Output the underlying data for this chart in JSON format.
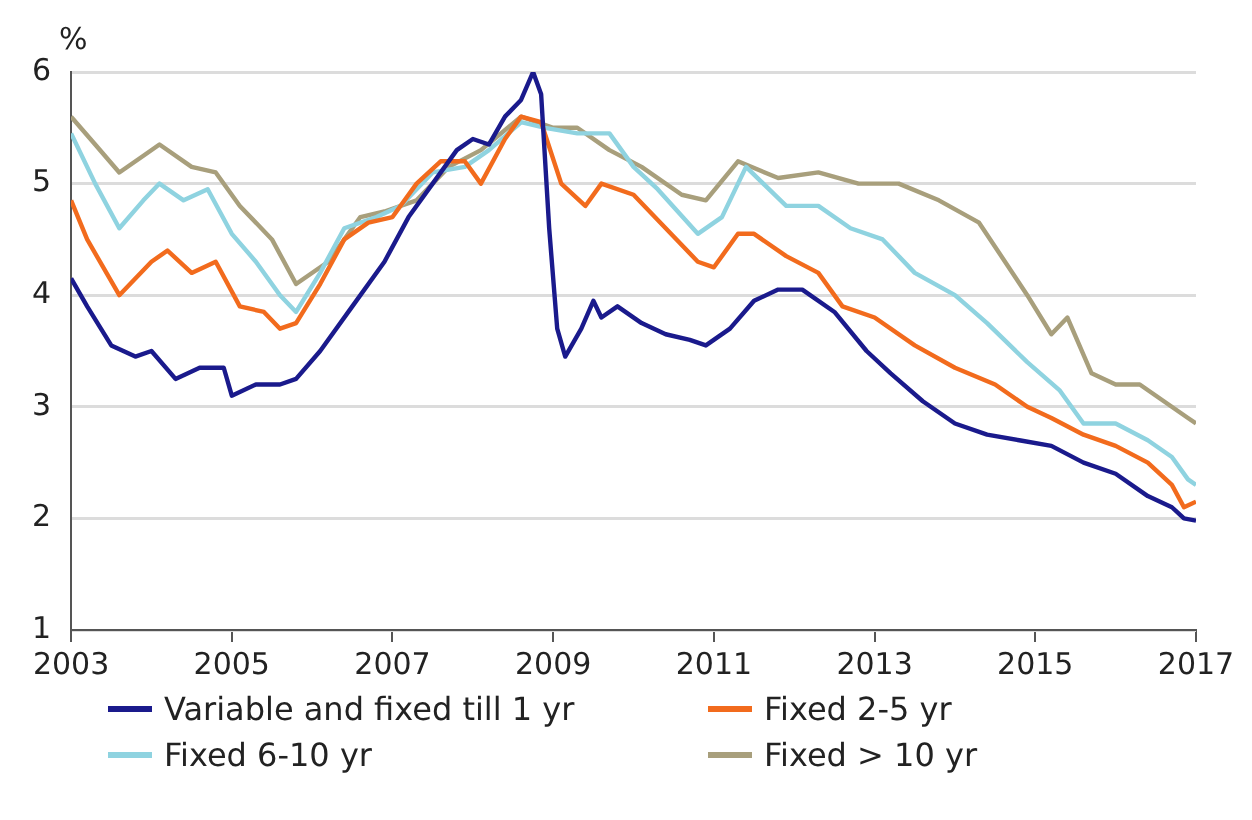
{
  "chart_data": {
    "type": "line",
    "ylabel": "%",
    "xlim": [
      2003,
      2017
    ],
    "xticks": [
      2003,
      2005,
      2007,
      2009,
      2011,
      2013,
      2015,
      2017
    ],
    "ylim": [
      1,
      6
    ],
    "yticks": [
      1,
      2,
      3,
      4,
      5,
      6
    ],
    "grid": "y",
    "legend": "bottom",
    "marker": "none",
    "line_style": "solid",
    "series": [
      {
        "name": "Variable and fixed till 1 yr",
        "color": "#1a1a8c",
        "x": [
          2003.0,
          2003.2,
          2003.5,
          2003.8,
          2004.0,
          2004.3,
          2004.6,
          2004.9,
          2005.0,
          2005.3,
          2005.6,
          2005.8,
          2006.1,
          2006.5,
          2006.9,
          2007.2,
          2007.5,
          2007.8,
          2008.0,
          2008.2,
          2008.4,
          2008.6,
          2008.75,
          2008.85,
          2008.95,
          2009.05,
          2009.15,
          2009.35,
          2009.5,
          2009.6,
          2009.8,
          2010.1,
          2010.4,
          2010.7,
          2010.9,
          2011.2,
          2011.5,
          2011.8,
          2012.1,
          2012.5,
          2012.9,
          2013.2,
          2013.6,
          2014.0,
          2014.4,
          2014.8,
          2015.2,
          2015.6,
          2016.0,
          2016.4,
          2016.7,
          2016.85,
          2017.0
        ],
        "values": [
          4.15,
          3.9,
          3.55,
          3.45,
          3.5,
          3.25,
          3.35,
          3.35,
          3.1,
          3.2,
          3.2,
          3.25,
          3.5,
          3.9,
          4.3,
          4.7,
          5.0,
          5.3,
          5.4,
          5.35,
          5.6,
          5.75,
          6.0,
          5.8,
          4.6,
          3.7,
          3.45,
          3.7,
          3.95,
          3.8,
          3.9,
          3.75,
          3.65,
          3.6,
          3.55,
          3.7,
          3.95,
          4.05,
          4.05,
          3.85,
          3.5,
          3.3,
          3.05,
          2.85,
          2.75,
          2.7,
          2.65,
          2.5,
          2.4,
          2.2,
          2.1,
          2.0,
          1.98
        ]
      },
      {
        "name": "Fixed 2-5 yr",
        "color": "#f26b1d",
        "x": [
          2003.0,
          2003.2,
          2003.6,
          2004.0,
          2004.2,
          2004.5,
          2004.8,
          2005.1,
          2005.4,
          2005.6,
          2005.8,
          2006.1,
          2006.4,
          2006.7,
          2007.0,
          2007.3,
          2007.6,
          2007.9,
          2008.1,
          2008.4,
          2008.6,
          2008.85,
          2009.1,
          2009.4,
          2009.6,
          2010.0,
          2010.4,
          2010.8,
          2011.0,
          2011.3,
          2011.5,
          2011.9,
          2012.3,
          2012.6,
          2013.0,
          2013.5,
          2014.0,
          2014.5,
          2014.9,
          2015.2,
          2015.6,
          2016.0,
          2016.4,
          2016.7,
          2016.85,
          2017.0
        ],
        "values": [
          4.85,
          4.5,
          4.0,
          4.3,
          4.4,
          4.2,
          4.3,
          3.9,
          3.85,
          3.7,
          3.75,
          4.1,
          4.5,
          4.65,
          4.7,
          5.0,
          5.2,
          5.2,
          5.0,
          5.4,
          5.6,
          5.55,
          5.0,
          4.8,
          5.0,
          4.9,
          4.6,
          4.3,
          4.25,
          4.55,
          4.55,
          4.35,
          4.2,
          3.9,
          3.8,
          3.55,
          3.35,
          3.2,
          3.0,
          2.9,
          2.75,
          2.65,
          2.5,
          2.3,
          2.1,
          2.15
        ]
      },
      {
        "name": "Fixed 6-10 yr",
        "color": "#8fd3e0",
        "x": [
          2003.0,
          2003.3,
          2003.6,
          2003.9,
          2004.1,
          2004.4,
          2004.7,
          2005.0,
          2005.3,
          2005.6,
          2005.8,
          2006.1,
          2006.4,
          2006.8,
          2007.1,
          2007.5,
          2007.9,
          2008.2,
          2008.6,
          2008.9,
          2009.3,
          2009.7,
          2010.0,
          2010.3,
          2010.8,
          2011.1,
          2011.4,
          2011.9,
          2012.3,
          2012.7,
          2013.1,
          2013.5,
          2014.0,
          2014.4,
          2014.9,
          2015.3,
          2015.6,
          2016.0,
          2016.4,
          2016.7,
          2016.9,
          2017.0
        ],
        "values": [
          5.45,
          5.0,
          4.6,
          4.85,
          5.0,
          4.85,
          4.95,
          4.55,
          4.3,
          4.0,
          3.85,
          4.2,
          4.6,
          4.7,
          4.8,
          5.1,
          5.15,
          5.3,
          5.55,
          5.5,
          5.45,
          5.45,
          5.15,
          4.95,
          4.55,
          4.7,
          5.15,
          4.8,
          4.8,
          4.6,
          4.5,
          4.2,
          4.0,
          3.75,
          3.4,
          3.15,
          2.85,
          2.85,
          2.7,
          2.55,
          2.35,
          2.3
        ]
      },
      {
        "name": "Fixed > 10 yr",
        "color": "#a89f7c",
        "x": [
          2003.0,
          2003.3,
          2003.6,
          2003.9,
          2004.1,
          2004.5,
          2004.8,
          2005.1,
          2005.5,
          2005.8,
          2006.2,
          2006.6,
          2006.9,
          2007.3,
          2007.7,
          2008.1,
          2008.6,
          2009.0,
          2009.3,
          2009.7,
          2010.1,
          2010.6,
          2010.9,
          2011.3,
          2011.8,
          2012.3,
          2012.8,
          2013.3,
          2013.8,
          2014.3,
          2014.9,
          2015.2,
          2015.4,
          2015.7,
          2016.0,
          2016.3,
          2016.6,
          2016.9,
          2017.0
        ],
        "values": [
          5.6,
          5.35,
          5.1,
          5.25,
          5.35,
          5.15,
          5.1,
          4.8,
          4.5,
          4.1,
          4.3,
          4.7,
          4.75,
          4.85,
          5.15,
          5.3,
          5.6,
          5.5,
          5.5,
          5.3,
          5.15,
          4.9,
          4.85,
          5.2,
          5.05,
          5.1,
          5.0,
          5.0,
          4.85,
          4.65,
          4.0,
          3.65,
          3.8,
          3.3,
          3.2,
          3.2,
          3.05,
          2.9,
          2.85
        ]
      }
    ]
  }
}
